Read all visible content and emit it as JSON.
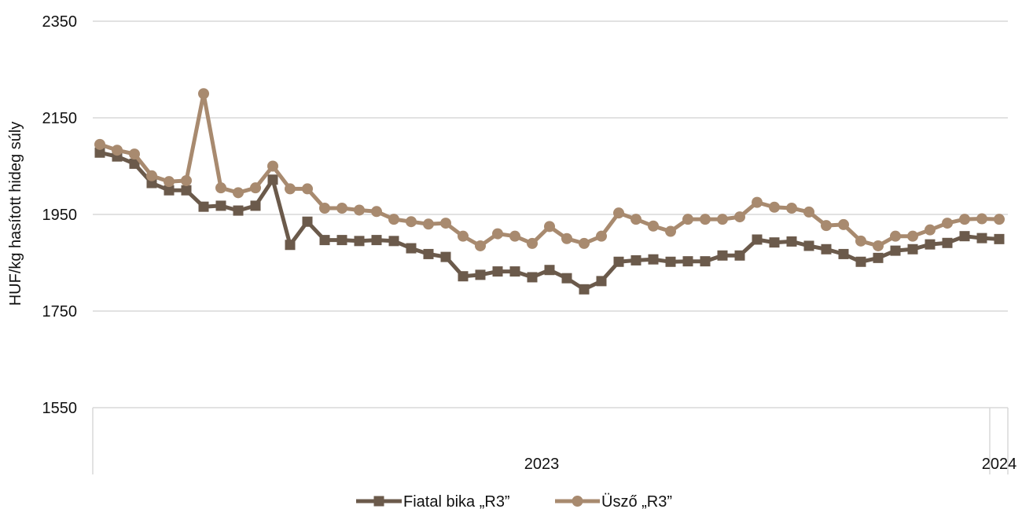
{
  "chart_data": {
    "type": "line",
    "ylabel": "HUF/kg hasított hideg súly",
    "xlabel": "",
    "ylim": [
      1550,
      2350
    ],
    "yticks": [
      "2350",
      "2150",
      "1950",
      "1750",
      "1550"
    ],
    "ytick_values": [
      2350,
      2150,
      1950,
      1750,
      1550
    ],
    "x_labels": [
      {
        "label": "2023",
        "index": 28
      },
      {
        "label": "2024",
        "index": 52
      }
    ],
    "grid": true,
    "legend_position": "bottom",
    "series": [
      {
        "name": "Fiatal bika „R3”",
        "color": "#6b5a4b",
        "marker": "square",
        "values": [
          2078,
          2070,
          2055,
          2015,
          2000,
          2000,
          1966,
          1968,
          1958,
          1968,
          2022,
          1887,
          1935,
          1897,
          1897,
          1895,
          1897,
          1895,
          1880,
          1868,
          1862,
          1822,
          1825,
          1832,
          1832,
          1820,
          1835,
          1818,
          1795,
          1812,
          1852,
          1855,
          1857,
          1852,
          1853,
          1853,
          1865,
          1865,
          1898,
          1892,
          1894,
          1885,
          1878,
          1868,
          1852,
          1860,
          1875,
          1878,
          1888,
          1891,
          1905,
          1901,
          1899
        ]
      },
      {
        "name": "Üsző „R3”",
        "color": "#a88a6f",
        "marker": "circle",
        "values": [
          2095,
          2083,
          2075,
          2030,
          2018,
          2020,
          2200,
          2005,
          1995,
          2005,
          2050,
          2003,
          2003,
          1963,
          1963,
          1959,
          1956,
          1940,
          1935,
          1930,
          1932,
          1905,
          1885,
          1910,
          1905,
          1890,
          1925,
          1900,
          1890,
          1905,
          1953,
          1940,
          1926,
          1915,
          1940,
          1940,
          1940,
          1945,
          1975,
          1965,
          1963,
          1955,
          1927,
          1929,
          1895,
          1885,
          1905,
          1905,
          1918,
          1932,
          1940,
          1941,
          1940
        ]
      }
    ]
  }
}
